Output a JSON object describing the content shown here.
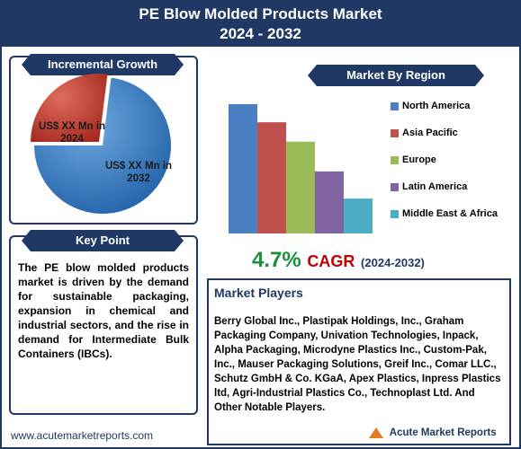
{
  "header": {
    "title_line1": "PE Blow Molded Products Market",
    "title_line2": "2024 - 2032"
  },
  "incremental": {
    "label": "Incremental Growth",
    "slice_2024": "US$ XX Mn in 2024",
    "slice_2032": "US$ XX Mn in 2032"
  },
  "key_point": {
    "label": "Key Point",
    "text": "The PE blow molded products market is driven by the demand for sustainable packaging, expansion in chemical and industrial sectors, and the rise in demand for Intermediate Bulk Containers (IBCs)."
  },
  "region": {
    "label": "Market By Region"
  },
  "cagr": {
    "value": "4.7%",
    "label": "CAGR",
    "years": "(2024-2032)"
  },
  "players": {
    "title": "Market Players",
    "text": "Berry Global Inc., Plastipak Holdings, Inc., Graham Packaging Company, Univation Technologies, Inpack, Alpha Packaging, Microdyne Plastics Inc., Custom-Pak, Inc., Mauser Packaging Solutions, Greif Inc., Comar LLC., Schutz GmbH & Co. KGaA, Apex Plastics, Inpress Plastics ltd, Agri-Industrial Plastics Co., Technoplast Ltd. And Other Notable Players."
  },
  "footer": {
    "url": "www.acutemarketreports.com",
    "logo_text": "Acute Market Reports"
  },
  "colors": {
    "navy": "#1f3864",
    "green": "#1b8f3a",
    "red": "#c00000"
  },
  "chart_data": [
    {
      "type": "pie",
      "slices": [
        {
          "label": "US$ XX Mn in 2024",
          "value": 27,
          "color": "#c0392b"
        },
        {
          "label": "US$ XX Mn in 2032",
          "value": 73,
          "color": "#2e75b6"
        }
      ]
    },
    {
      "type": "bar",
      "title": "Market By Region",
      "categories": [
        "North America",
        "Asia Pacific",
        "Europe",
        "Latin America",
        "Middle East & Africa"
      ],
      "values": [
        100,
        86,
        71,
        48,
        27
      ],
      "colors": [
        "#4a7fc1",
        "#c0504d",
        "#9bbb59",
        "#8064a2",
        "#4bacc6"
      ],
      "legend": "right"
    }
  ]
}
